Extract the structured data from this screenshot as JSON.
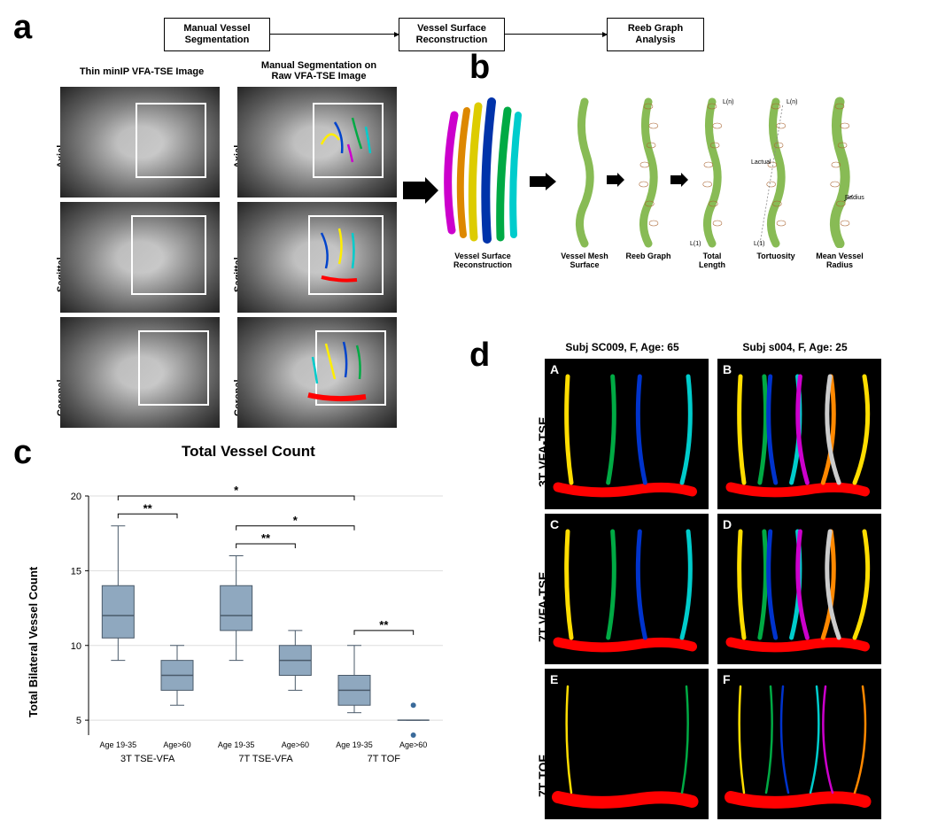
{
  "panel_labels": {
    "a": "a",
    "b": "b",
    "c": "c",
    "d": "d"
  },
  "flowchart": {
    "boxes": [
      {
        "text": "Manual Vessel\nSegmentation"
      },
      {
        "text": "Vessel Surface\nReconstruction"
      },
      {
        "text": "Reeb Graph\nAnalysis"
      }
    ]
  },
  "panel_a": {
    "col_headers": [
      "Thin minIP VFA-TSE Image",
      "Manual Segmentation on\nRaw VFA-TSE Image"
    ],
    "row_labels": [
      "Axial",
      "Sagittal",
      "Coronal"
    ],
    "seg_colors": [
      "#ff0000",
      "#ffee00",
      "#00aa44",
      "#0044cc",
      "#00cccc",
      "#cc00cc",
      "#ff8800"
    ]
  },
  "panel_b": {
    "stage_labels": [
      "Vessel Surface\nReconstruction",
      "Vessel Mesh\nSurface",
      "Reeb Graph",
      "Total\nLength",
      "Tortuosity",
      "Mean Vessel\nRadius"
    ],
    "bundle_colors": [
      "#cc00cc",
      "#dd8800",
      "#ddcc00",
      "#0033aa",
      "#00aa44",
      "#00cccc"
    ],
    "single_vessel_color": "#88bb55",
    "mesh_line_color": "#aa6633",
    "annotations": {
      "Ln": "L(n)",
      "L1": "L(1)",
      "Lactual": "Lactual",
      "radius": "Radius"
    }
  },
  "panel_c": {
    "title": "Total Vessel Count",
    "ylabel": "Total Bilateral Vessel Count",
    "yticks": [
      5,
      10,
      15,
      20
    ],
    "ylim": [
      4,
      20
    ],
    "groups": [
      {
        "label": "3T TSE-VFA",
        "sub": [
          "Age 19-35",
          "Age>60"
        ]
      },
      {
        "label": "7T TSE-VFA",
        "sub": [
          "Age 19-35",
          "Age>60"
        ]
      },
      {
        "label": "7T TOF",
        "sub": [
          "Age 19-35",
          "Age>60"
        ]
      }
    ],
    "boxes": [
      {
        "q1": 10.5,
        "median": 12,
        "q3": 14,
        "wlo": 9,
        "whi": 18
      },
      {
        "q1": 7,
        "median": 8,
        "q3": 9,
        "wlo": 6,
        "whi": 10
      },
      {
        "q1": 11,
        "median": 12,
        "q3": 14,
        "wlo": 9,
        "whi": 16
      },
      {
        "q1": 8,
        "median": 9,
        "q3": 10,
        "wlo": 7,
        "whi": 11
      },
      {
        "q1": 6,
        "median": 7,
        "q3": 8,
        "wlo": 5.5,
        "whi": 10
      },
      {
        "q1": 5,
        "median": 5,
        "q3": 5,
        "wlo": 5,
        "whi": 5,
        "outliers": [
          6,
          4
        ]
      }
    ],
    "box_fill": "#8fa8bf",
    "box_stroke": "#4a5a6a",
    "outlier_color": "#3a6a9a",
    "grid_color": "#dddddd",
    "significance": [
      {
        "from": 0,
        "to": 1,
        "y": 18.8,
        "label": "**"
      },
      {
        "from": 2,
        "to": 3,
        "y": 16.8,
        "label": "**"
      },
      {
        "from": 4,
        "to": 5,
        "y": 11.0,
        "label": "**"
      },
      {
        "from": 0,
        "to": 4,
        "y": 20.0,
        "label": "*"
      },
      {
        "from": 2,
        "to": 4,
        "y": 18.0,
        "label": "*"
      }
    ]
  },
  "panel_d": {
    "col_headers": [
      "Subj SC009, F, Age: 65",
      "Subj s004, F, Age: 25"
    ],
    "row_labels": [
      "3T VFA-TSE",
      "7T VFA-TSE",
      "7T TOF"
    ],
    "cell_labels": [
      "A",
      "B",
      "C",
      "D",
      "E",
      "F"
    ],
    "vessel_colors": [
      "#ff0000",
      "#ffdd00",
      "#00aa44",
      "#0033cc",
      "#00cccc",
      "#cc00cc",
      "#ff8800",
      "#cccccc"
    ]
  }
}
